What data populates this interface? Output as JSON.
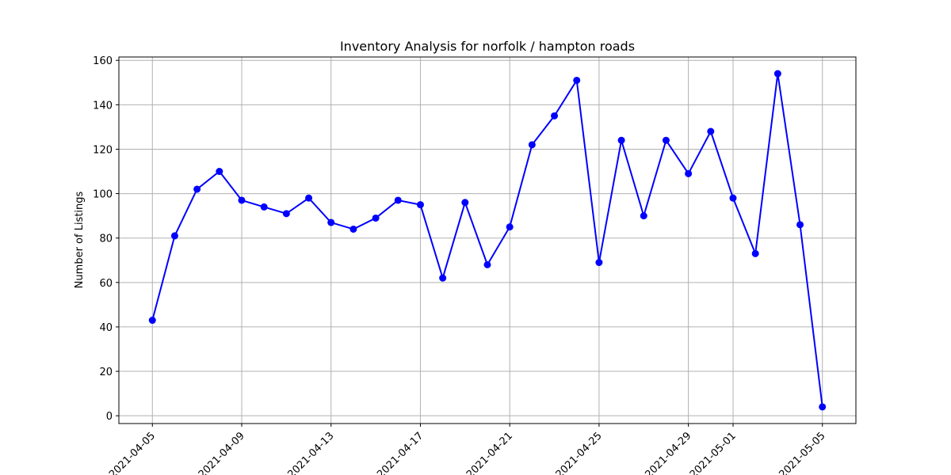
{
  "chart_data": {
    "type": "line",
    "title": "Inventory Analysis for norfolk / hampton roads",
    "xlabel": "",
    "ylabel": "Number of Listings",
    "x": [
      "2021-04-05",
      "2021-04-06",
      "2021-04-07",
      "2021-04-08",
      "2021-04-09",
      "2021-04-10",
      "2021-04-11",
      "2021-04-12",
      "2021-04-13",
      "2021-04-14",
      "2021-04-15",
      "2021-04-16",
      "2021-04-17",
      "2021-04-18",
      "2021-04-19",
      "2021-04-20",
      "2021-04-21",
      "2021-04-22",
      "2021-04-23",
      "2021-04-24",
      "2021-04-25",
      "2021-04-26",
      "2021-04-27",
      "2021-04-28",
      "2021-04-29",
      "2021-04-30",
      "2021-05-01",
      "2021-05-02",
      "2021-05-03",
      "2021-05-04",
      "2021-05-05"
    ],
    "series": [
      {
        "values": [
          43,
          81,
          102,
          110,
          97,
          94,
          91,
          98,
          87,
          84,
          89,
          97,
          95,
          62,
          96,
          68,
          85,
          122,
          135,
          151,
          69,
          124,
          90,
          124,
          109,
          128,
          98,
          73,
          154,
          86,
          4
        ],
        "color": "#0000ff",
        "marker": "circle"
      }
    ],
    "xticks": [
      "2021-04-05",
      "2021-04-09",
      "2021-04-13",
      "2021-04-17",
      "2021-04-21",
      "2021-04-25",
      "2021-04-29",
      "2021-05-01",
      "2021-05-05"
    ],
    "yticks": [
      0,
      20,
      40,
      60,
      80,
      100,
      120,
      140,
      160
    ],
    "xlim": [
      "2021-04-03.5",
      "2021-05-06.5"
    ],
    "ylim": [
      -3.5,
      161.5
    ],
    "grid": true,
    "x_tick_rotation": 45
  }
}
